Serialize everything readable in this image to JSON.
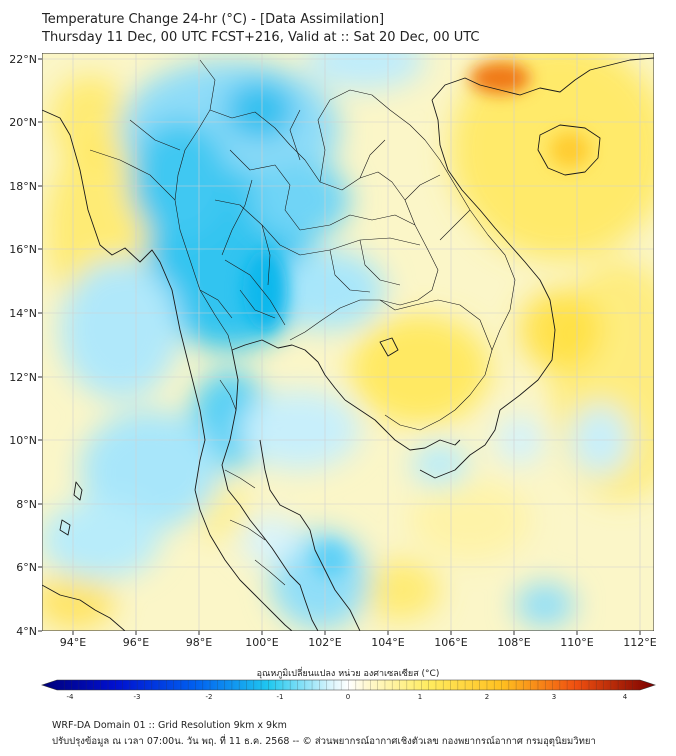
{
  "header": {
    "title_line1": "Temperature Change 24-hr (°C) - [Data Assimilation]",
    "title_line2": "Thursday 11 Dec, 00 UTC FCST+216, Valid at :: Sat 20 Dec, 00 UTC"
  },
  "map": {
    "lon_ticks": [
      "94°E",
      "96°E",
      "98°E",
      "100°E",
      "102°E",
      "104°E",
      "106°E",
      "108°E",
      "110°E",
      "112°E"
    ],
    "lat_ticks": [
      "4°N",
      "6°N",
      "8°N",
      "10°N",
      "12°N",
      "14°N",
      "16°N",
      "18°N",
      "20°N",
      "22°N"
    ],
    "lon_range": [
      93,
      112.5
    ],
    "lat_range": [
      4,
      22.2
    ],
    "colors": {
      "cold_strong": "#00c0f0",
      "cold_light": "#b8ecfa",
      "neutral": "#ffffff",
      "warm_light": "#fff2a8",
      "warm": "#ffe44a",
      "hot": "#f07818",
      "border": "#1a1a1a",
      "grid": "#d8d8d8"
    }
  },
  "colorbar": {
    "label": "อุณหภูมิเปลี่ยนแปลง หน่วย องศาเซลเซียส (°C)",
    "tick_labels": [
      "-4",
      "-3",
      "-2",
      "-1",
      "0",
      "1",
      "2",
      "3",
      "4"
    ],
    "min": -4,
    "max": 4
  },
  "footer": {
    "line1": "WRF-DA Domain 01 :: Grid Resolution 9km x 9km",
    "line2": "ปรับปรุงข้อมูล ณ เวลา 07:00น. วัน พฤ. ที่ 11 ธ.ค. 2568 -- © ส่วนพยากรณ์อากาศเชิงตัวเลข กองพยากรณ์อากาศ กรมอุตุนิยมวิทยา"
  }
}
